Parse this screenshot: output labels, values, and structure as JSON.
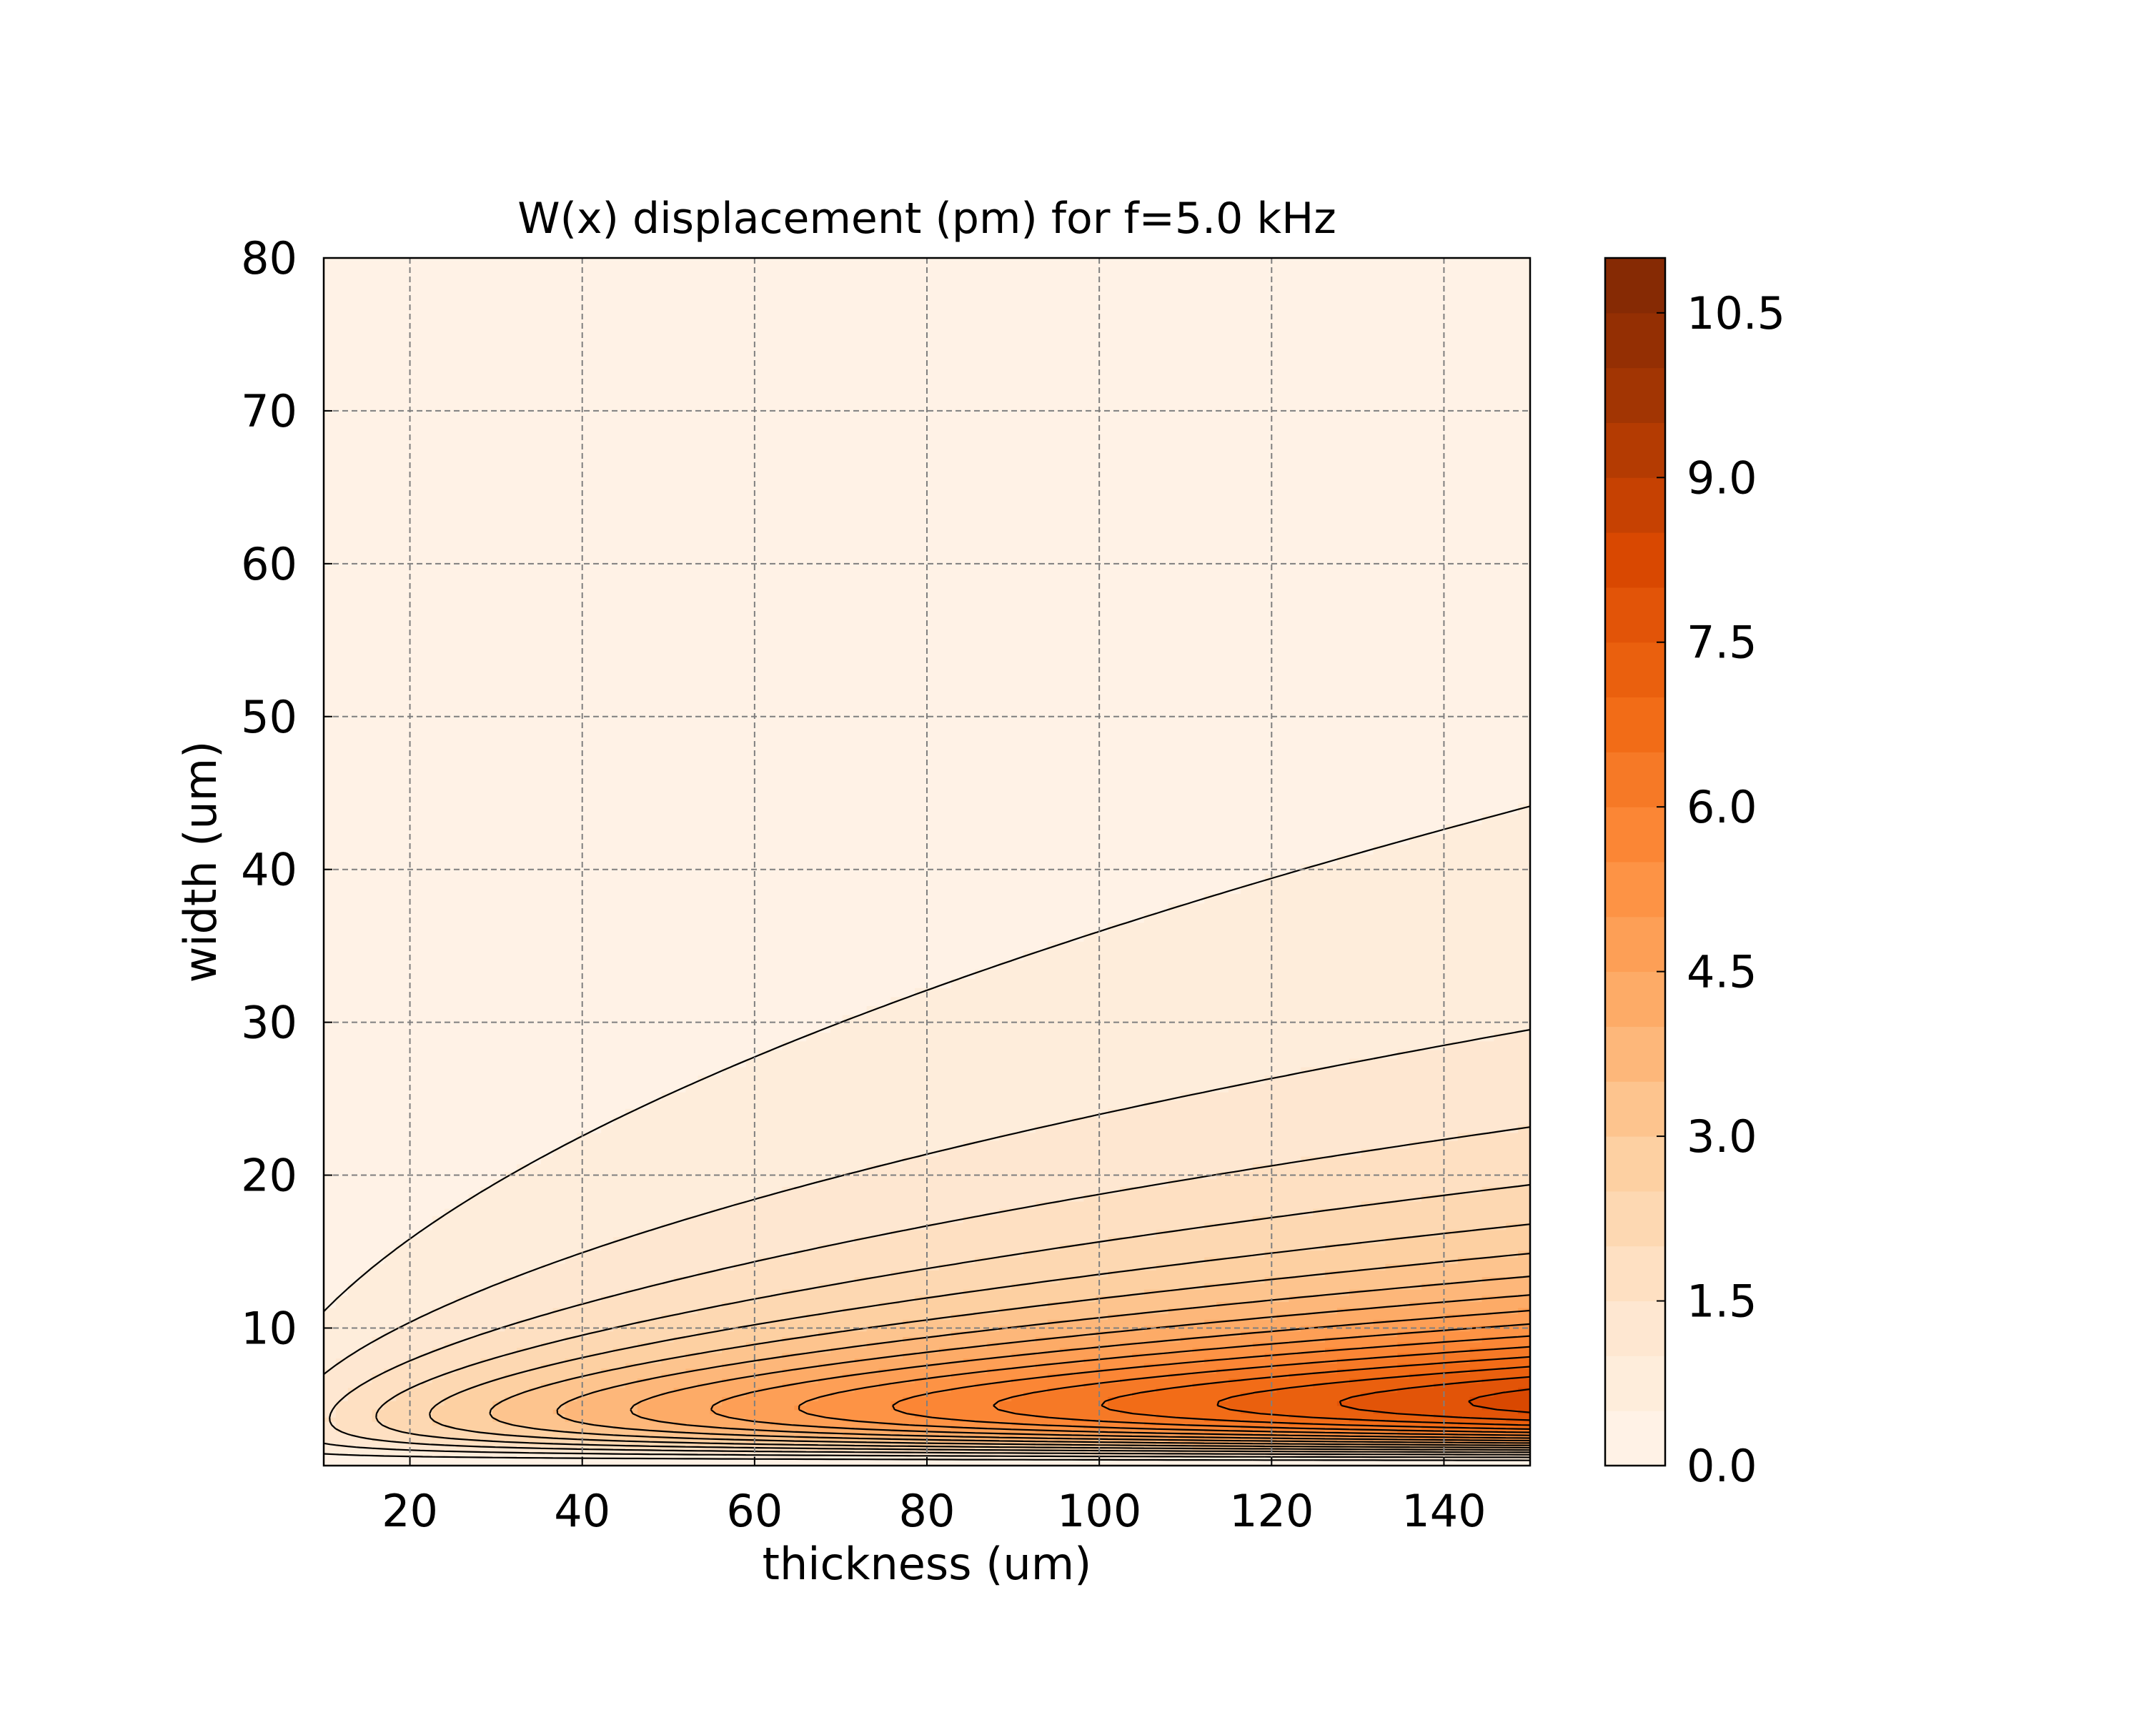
{
  "chart_data": {
    "type": "contour",
    "title": "W(x) displacement (pm) for f=5.0 kHz",
    "xlabel": "thickness (um)",
    "ylabel": "width (um)",
    "xlim": [
      10,
      150
    ],
    "ylim": [
      1,
      80
    ],
    "x_ticks": [
      "20",
      "40",
      "60",
      "80",
      "100",
      "120",
      "140"
    ],
    "x_tick_values": [
      20,
      40,
      60,
      80,
      100,
      120,
      140
    ],
    "y_ticks": [
      "10",
      "20",
      "30",
      "40",
      "50",
      "60",
      "70",
      "80"
    ],
    "y_tick_values": [
      10,
      20,
      30,
      40,
      50,
      60,
      70,
      80
    ],
    "grid": true,
    "grid_style": "dashed",
    "colormap": "Oranges",
    "colors": {
      "low": "#fff5eb",
      "mid": "#fd8d3c",
      "high": "#7f2704",
      "contour_line": "#000000",
      "grid_line": "#7f7f7f"
    },
    "levels_min": 0.0,
    "levels_max": 11.0,
    "level_step": 0.5,
    "colorbar": {
      "ticks": [
        "0.0",
        "1.5",
        "3.0",
        "4.5",
        "6.0",
        "7.5",
        "9.0",
        "10.5"
      ],
      "tick_values": [
        0.0,
        1.5,
        3.0,
        4.5,
        6.0,
        7.5,
        9.0,
        10.5
      ],
      "range": [
        0.0,
        11.0
      ]
    },
    "model": {
      "description_of_field": "displacement peaks near width ~ 7-8 um and grows with thickness",
      "peak_value_at_max_thickness": 10.9,
      "peak_width_at_max_thickness": 7.5
    }
  }
}
